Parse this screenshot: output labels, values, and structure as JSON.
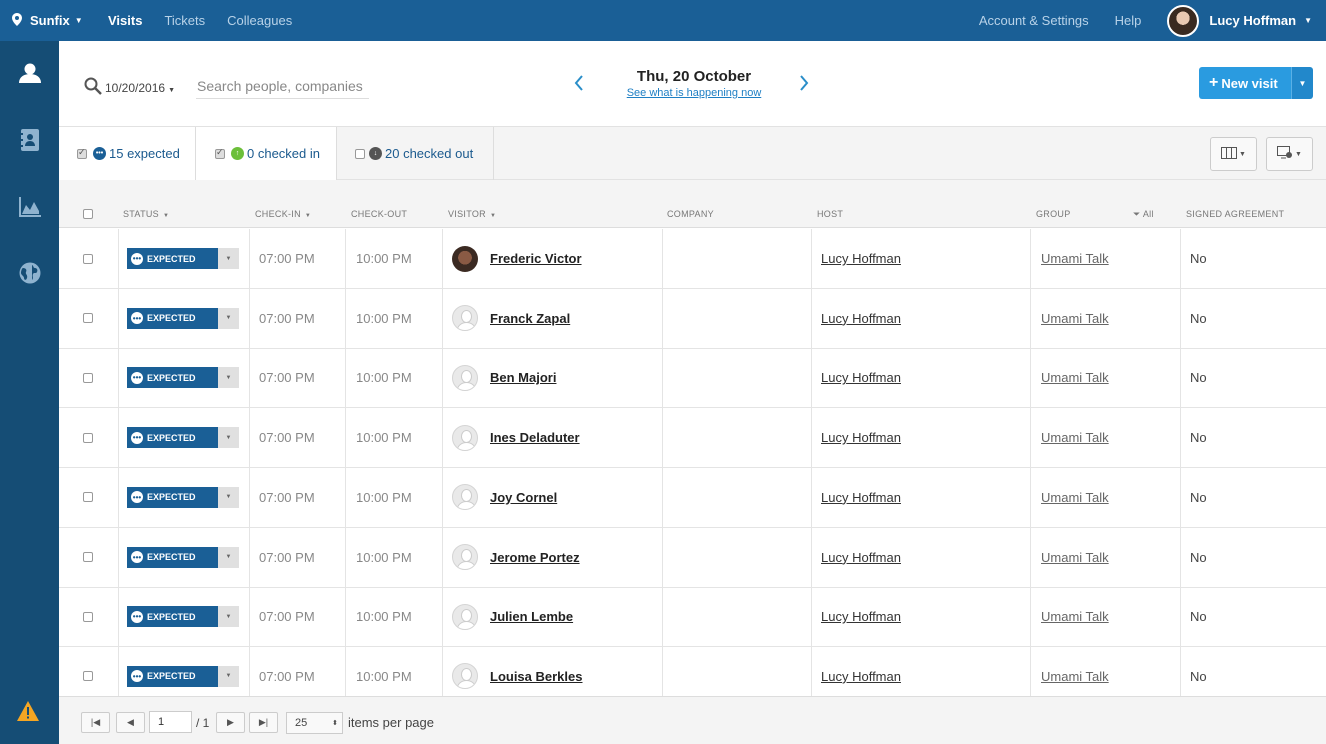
{
  "topbar": {
    "location": "Sunfix",
    "nav": [
      "Visits",
      "Tickets",
      "Colleagues"
    ],
    "account": "Account & Settings",
    "help": "Help",
    "user_name": "Lucy Hoffman"
  },
  "header": {
    "date": "10/20/2016",
    "search_placeholder": "Search people, companies",
    "day_title": "Thu, 20 October",
    "day_link": "See what is happening now",
    "new_visit": "New visit"
  },
  "filters": {
    "expected": "15 expected",
    "checked_in": "0 checked in",
    "checked_out": "20 checked out"
  },
  "columns": {
    "status": "STATUS",
    "check_in": "CHECK-IN",
    "check_out": "CHECK-OUT",
    "visitor": "VISITOR",
    "company": "COMPANY",
    "host": "HOST",
    "group": "GROUP",
    "group_filter": "All",
    "signed": "SIGNED AGREEMENT"
  },
  "rows": [
    {
      "status": "EXPECTED",
      "check_in": "07:00 PM",
      "check_out": "10:00 PM",
      "visitor": "Frederic Victor",
      "company": "",
      "host": "Lucy Hoffman",
      "group": "Umami Talk",
      "signed": "No"
    },
    {
      "status": "EXPECTED",
      "check_in": "07:00 PM",
      "check_out": "10:00 PM",
      "visitor": "Franck Zapal",
      "company": "",
      "host": "Lucy Hoffman",
      "group": "Umami Talk",
      "signed": "No"
    },
    {
      "status": "EXPECTED",
      "check_in": "07:00 PM",
      "check_out": "10:00 PM",
      "visitor": "Ben Majori",
      "company": "",
      "host": "Lucy Hoffman",
      "group": "Umami Talk",
      "signed": "No"
    },
    {
      "status": "EXPECTED",
      "check_in": "07:00 PM",
      "check_out": "10:00 PM",
      "visitor": "Ines Deladuter",
      "company": "",
      "host": "Lucy Hoffman",
      "group": "Umami Talk",
      "signed": "No"
    },
    {
      "status": "EXPECTED",
      "check_in": "07:00 PM",
      "check_out": "10:00 PM",
      "visitor": "Joy Cornel",
      "company": "",
      "host": "Lucy Hoffman",
      "group": "Umami Talk",
      "signed": "No"
    },
    {
      "status": "EXPECTED",
      "check_in": "07:00 PM",
      "check_out": "10:00 PM",
      "visitor": "Jerome Portez",
      "company": "",
      "host": "Lucy Hoffman",
      "group": "Umami Talk",
      "signed": "No"
    },
    {
      "status": "EXPECTED",
      "check_in": "07:00 PM",
      "check_out": "10:00 PM",
      "visitor": "Julien Lembe",
      "company": "",
      "host": "Lucy Hoffman",
      "group": "Umami Talk",
      "signed": "No"
    },
    {
      "status": "EXPECTED",
      "check_in": "07:00 PM",
      "check_out": "10:00 PM",
      "visitor": "Louisa Berkles",
      "company": "",
      "host": "Lucy Hoffman",
      "group": "Umami Talk",
      "signed": "No"
    }
  ],
  "pagination": {
    "page": "1",
    "total": "/ 1",
    "per_page": "25",
    "per_page_label": "items per page"
  },
  "icons": {
    "location": "map-pin-icon",
    "sidebar": [
      "visitors-icon",
      "address-book-icon",
      "chart-icon",
      "globe-icon",
      "warning-icon"
    ]
  },
  "colors": {
    "topbar": "#1a5f96",
    "sidebar": "#154d75",
    "accent": "#2a9be0",
    "status_expected": "#1a5f96",
    "checked_in": "#6cbf3a"
  }
}
